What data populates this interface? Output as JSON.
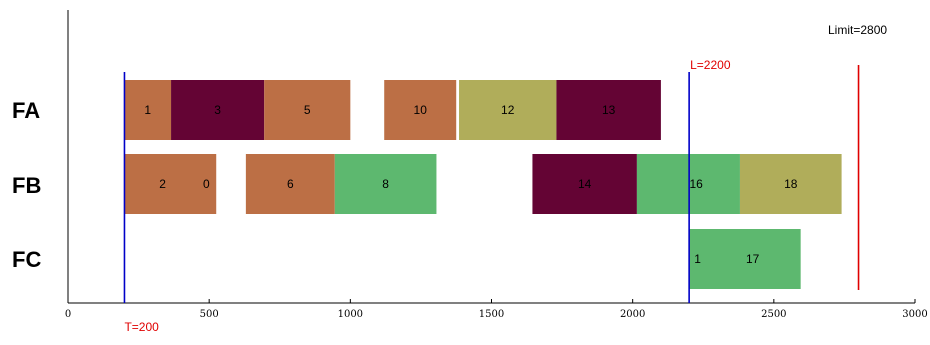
{
  "chart_data": {
    "type": "gantt",
    "xlim": [
      0,
      3000
    ],
    "x_ticks": [
      0,
      500,
      1000,
      1500,
      2000,
      2500,
      3000
    ],
    "rows": [
      "FA",
      "FB",
      "FC"
    ],
    "colors": {
      "orange": "#bc6f45",
      "maroon": "#640434",
      "olive": "#b0ad5a",
      "green": "#5db86f",
      "marker_blue": "#0000c8",
      "marker_red": "#e00000"
    },
    "tasks": [
      {
        "row": "FA",
        "start": 200,
        "end": 365,
        "color": "orange",
        "label": "1"
      },
      {
        "row": "FA",
        "start": 365,
        "end": 695,
        "color": "maroon",
        "label": "3"
      },
      {
        "row": "FA",
        "start": 695,
        "end": 1000,
        "color": "orange",
        "label": "5"
      },
      {
        "row": "FA",
        "start": 1120,
        "end": 1375,
        "color": "orange",
        "label": "10"
      },
      {
        "row": "FA",
        "start": 1385,
        "end": 1730,
        "color": "olive",
        "label": "12"
      },
      {
        "row": "FA",
        "start": 1730,
        "end": 2100,
        "color": "maroon",
        "label": "13"
      },
      {
        "row": "FB",
        "start": 200,
        "end": 525,
        "color": "orange",
        "label": "2",
        "label_x": 335
      },
      {
        "row": "FB",
        "start": 200,
        "end": 525,
        "color": "orange",
        "label": "0",
        "label_x": 490
      },
      {
        "row": "FB",
        "start": 630,
        "end": 945,
        "color": "orange",
        "label": "6"
      },
      {
        "row": "FB",
        "start": 945,
        "end": 1305,
        "color": "green",
        "label": "8"
      },
      {
        "row": "FB",
        "start": 1645,
        "end": 2015,
        "color": "maroon",
        "label": "14"
      },
      {
        "row": "FB",
        "start": 2015,
        "end": 2380,
        "color": "green",
        "label": "16",
        "label_x": 2225
      },
      {
        "row": "FB",
        "start": 2380,
        "end": 2740,
        "color": "olive",
        "label": "18"
      },
      {
        "row": "FC",
        "start": 2200,
        "end": 2595,
        "color": "green",
        "label": "1",
        "label_x": 2230
      },
      {
        "row": "FC",
        "start": 2200,
        "end": 2595,
        "color": "green",
        "label": "17",
        "label_x": 2425
      }
    ],
    "markers": [
      {
        "x": 200,
        "color": "marker_blue",
        "label": "T=200",
        "label_pos": "bottom"
      },
      {
        "x": 2200,
        "color": "marker_blue",
        "label": "L=2200",
        "label_pos": "top"
      },
      {
        "x": 2800,
        "color": "marker_red",
        "label": "",
        "label_pos": "none"
      }
    ],
    "limit_note": "Limit=2800"
  }
}
